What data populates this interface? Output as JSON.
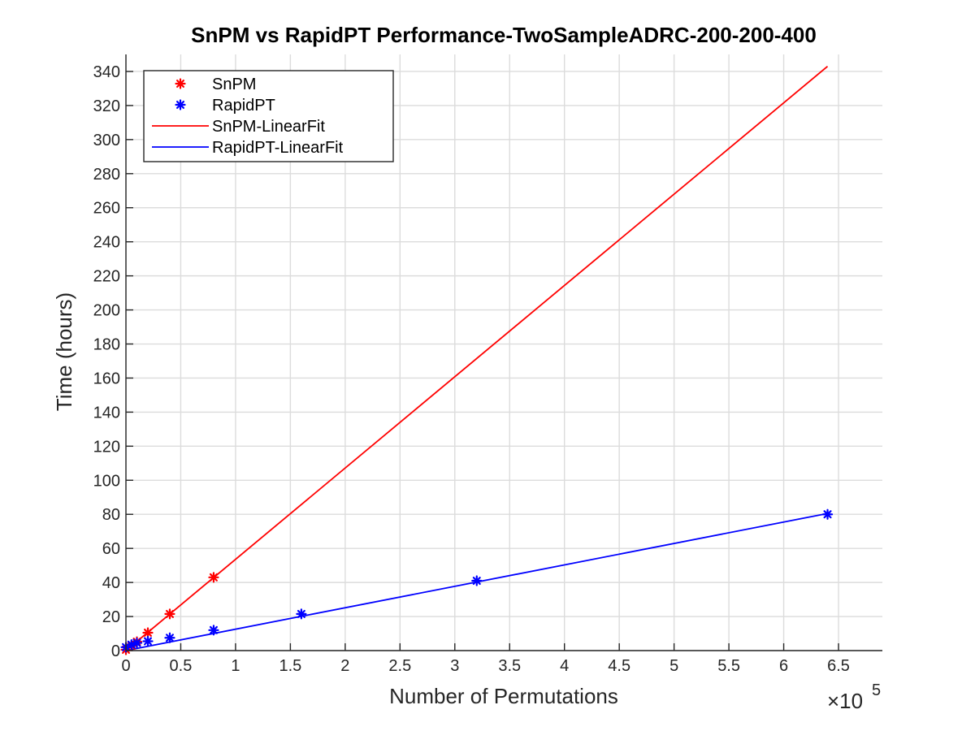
{
  "chart_data": {
    "type": "scatter",
    "title": "SnPM vs RapidPT Performance-TwoSampleADRC-200-200-400",
    "xlabel": "Number of Permutations",
    "ylabel": "Time (hours)",
    "x_exponent_label": "×10",
    "x_exponent_power": "5",
    "x_tick_scale": 100000,
    "xlim": [
      0,
      690000
    ],
    "ylim": [
      0,
      350
    ],
    "xticks": [
      0,
      50000,
      100000,
      150000,
      200000,
      250000,
      300000,
      350000,
      400000,
      450000,
      500000,
      550000,
      600000,
      650000
    ],
    "xtick_labels": [
      "0",
      "0.5",
      "1",
      "1.5",
      "2",
      "2.5",
      "3",
      "3.5",
      "4",
      "4.5",
      "5",
      "5.5",
      "6",
      "6.5"
    ],
    "yticks": [
      0,
      20,
      40,
      60,
      80,
      100,
      120,
      140,
      160,
      180,
      200,
      220,
      240,
      260,
      280,
      300,
      320,
      340
    ],
    "grid": true,
    "legend_position": "top-left",
    "series": [
      {
        "name": "SnPM",
        "kind": "marker",
        "color": "#ff0000",
        "x": [
          0,
          5000,
          10000,
          20000,
          40000,
          80000
        ],
        "y": [
          0.5,
          2.8,
          5.2,
          10.5,
          21.5,
          43
        ]
      },
      {
        "name": "RapidPT",
        "kind": "marker",
        "color": "#0000ff",
        "x": [
          0,
          5000,
          10000,
          20000,
          40000,
          80000,
          160000,
          320000,
          640000
        ],
        "y": [
          2,
          3.5,
          4.5,
          5.5,
          7.5,
          12,
          21.5,
          41,
          80
        ]
      },
      {
        "name": "SnPM-LinearFit",
        "kind": "line",
        "color": "#ff0000",
        "x": [
          0,
          640000
        ],
        "y": [
          0,
          343
        ]
      },
      {
        "name": "RapidPT-LinearFit",
        "kind": "line",
        "color": "#0000ff",
        "x": [
          0,
          640000
        ],
        "y": [
          0,
          80.5
        ]
      }
    ]
  }
}
